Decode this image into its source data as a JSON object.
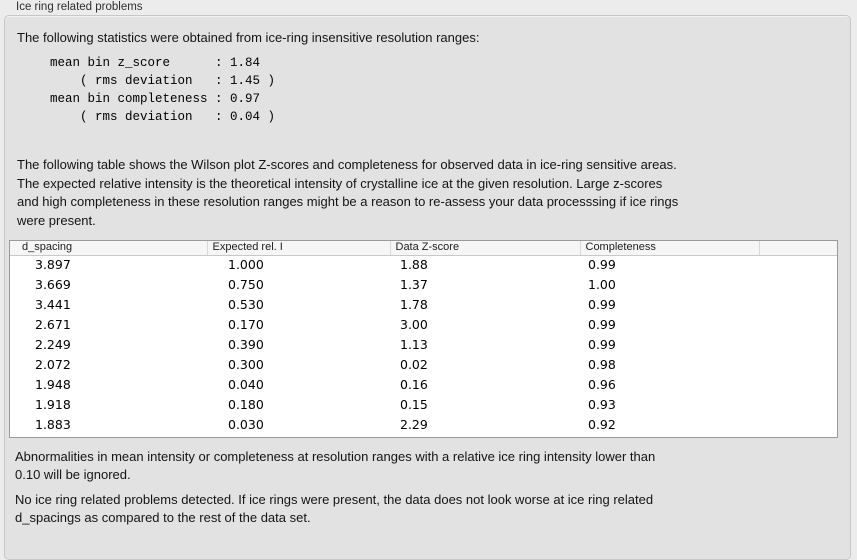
{
  "panel": {
    "title": "Ice ring related problems"
  },
  "stats": {
    "intro": "The following statistics were obtained from ice-ring insensitive resolution ranges:",
    "block": "mean bin z_score      : 1.84\n    ( rms deviation   : 1.45 )\nmean bin completeness : 0.97\n    ( rms deviation   : 0.04 )",
    "mean_bin_z_score": "1.84",
    "z_score_rms_deviation": "1.45",
    "mean_bin_completeness": "0.97",
    "completeness_rms_deviation": "0.04"
  },
  "description": "The following table shows the Wilson plot Z-scores and completeness for observed data in ice-ring sensitive areas.\nThe expected relative intensity is the theoretical intensity of crystalline ice at the given resolution. Large z-scores\nand high completeness in these resolution ranges might be a reason to re-assess your data processsing if ice rings\nwere present.",
  "table": {
    "columns": [
      "d_spacing",
      "Expected rel. I",
      "Data Z-score",
      "Completeness",
      ""
    ],
    "rows": [
      [
        "3.897",
        "1.000",
        "1.88",
        "0.99"
      ],
      [
        "3.669",
        "0.750",
        "1.37",
        "1.00"
      ],
      [
        "3.441",
        "0.530",
        "1.78",
        "0.99"
      ],
      [
        "2.671",
        "0.170",
        "3.00",
        "0.99"
      ],
      [
        "2.249",
        "0.390",
        "1.13",
        "0.99"
      ],
      [
        "2.072",
        "0.300",
        "0.02",
        "0.98"
      ],
      [
        "1.948",
        "0.040",
        "0.16",
        "0.96"
      ],
      [
        "1.918",
        "0.180",
        "0.15",
        "0.93"
      ],
      [
        "1.883",
        "0.030",
        "2.29",
        "0.92"
      ]
    ]
  },
  "notes": {
    "threshold": "Abnormalities in mean intensity or completeness at resolution ranges with a relative ice ring intensity lower than\n0.10 will be ignored.",
    "conclusion": "No ice ring related problems detected. If ice rings were present, the data does not look worse at ice ring related\nd_spacings as compared to the rest of the data set."
  },
  "colors": {
    "panel_background": "#e2e2e2",
    "page_background": "#ececec",
    "table_background": "#ffffff",
    "table_border": "#9a9a9a",
    "table_header_background": "#f6f6f6"
  }
}
